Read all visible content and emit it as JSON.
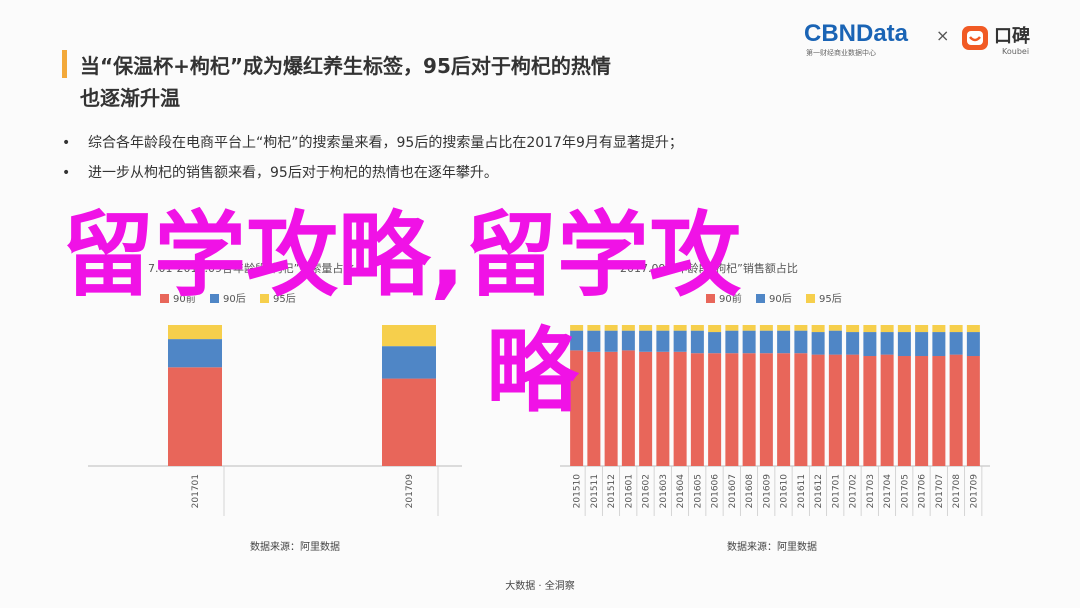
{
  "slide": {
    "title_line1": "当“保温杯+枸杞”成为爆红养生标签，95后对于枸杞的热情",
    "title_line2": "也逐渐升温",
    "bullets": [
      "综合各年龄段在电商平台上“枸杞”的搜索量来看，95后的搜索量占比在2017年9月有显著提升；",
      "进一步从枸杞的销售额来看，95后对于枸杞的热情也在逐年攀升。"
    ],
    "bullet_symbol": "•",
    "logo": {
      "cbn": "CBNData",
      "cbn_sub": "第一财经商业数据中心",
      "times": "×",
      "koubei": "口碑",
      "koubei_sub": "Koubei",
      "koubei_icon": "smile-bag-icon"
    },
    "overlay_text_line1": "留学攻略,留学攻",
    "overlay_text_line2": "略",
    "source_left": "数据来源：阿里数据",
    "source_right": "数据来源：阿里数据",
    "footer": "大数据 · 全洞察",
    "colors": {
      "s90_before": "#e8665a",
      "s90_after": "#4f86c6",
      "s95_after": "#f6cf4c",
      "overlay": "#f012e6",
      "accent": "#f3a93a"
    }
  },
  "chart_data": [
    {
      "type": "bar",
      "stacked": true,
      "title": "7.01-2017.09各年龄段“枸杞”搜索量占比",
      "categories": [
        "201701",
        "201709"
      ],
      "series": [
        {
          "name": "90前",
          "values": [
            70,
            62
          ]
        },
        {
          "name": "90后",
          "values": [
            20,
            23
          ]
        },
        {
          "name": "95后",
          "values": [
            10,
            15
          ]
        }
      ],
      "ylim": [
        0,
        100
      ],
      "grid": false,
      "legend": "top"
    },
    {
      "type": "bar",
      "stacked": true,
      "title": "2017.09各年龄段“枸杞”销售额占比",
      "categories": [
        "201510",
        "201511",
        "201512",
        "201601",
        "201602",
        "201603",
        "201604",
        "201605",
        "201606",
        "201607",
        "201608",
        "201609",
        "201610",
        "201611",
        "201612",
        "201701",
        "201702",
        "201703",
        "201704",
        "201705",
        "201706",
        "201707",
        "201708",
        "201709"
      ],
      "series": [
        {
          "name": "90前",
          "values": [
            82,
            81,
            81,
            82,
            81,
            81,
            81,
            80,
            80,
            80,
            80,
            80,
            80,
            80,
            79,
            79,
            79,
            78,
            79,
            78,
            78,
            78,
            79,
            78
          ]
        },
        {
          "name": "90后",
          "values": [
            14,
            15,
            15,
            14,
            15,
            15,
            15,
            16,
            15,
            16,
            16,
            16,
            16,
            16,
            16,
            17,
            16,
            17,
            16,
            17,
            17,
            17,
            16,
            17
          ]
        },
        {
          "name": "95后",
          "values": [
            4,
            4,
            4,
            4,
            4,
            4,
            4,
            4,
            5,
            4,
            4,
            4,
            4,
            4,
            5,
            4,
            5,
            5,
            5,
            5,
            5,
            5,
            5,
            5
          ]
        }
      ],
      "ylim": [
        0,
        100
      ],
      "grid": false,
      "legend": "top"
    }
  ]
}
